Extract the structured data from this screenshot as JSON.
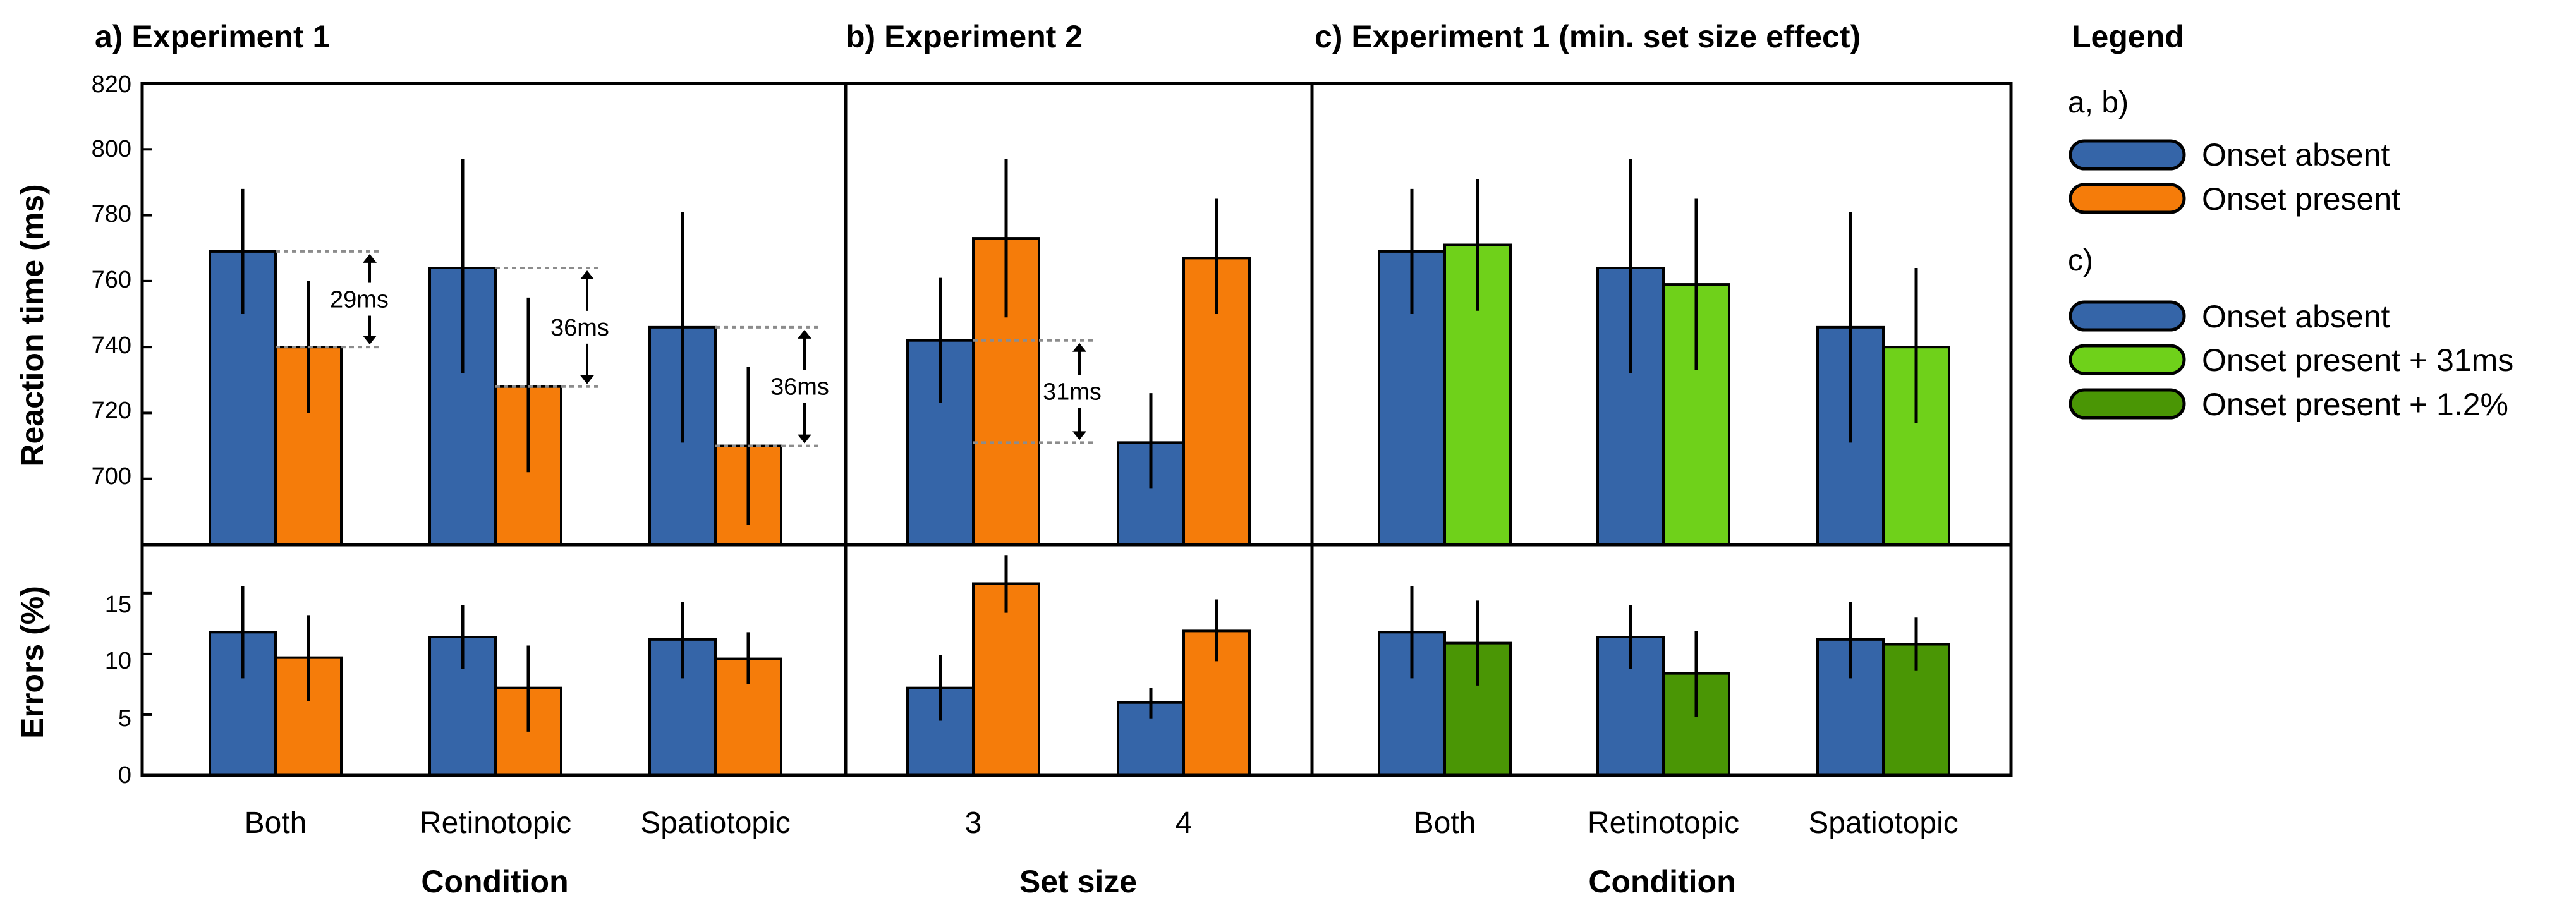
{
  "colors": {
    "onset_absent": "#3565a8",
    "onset_present": "#f57c0a",
    "onset_present_31ms": "#6fd11a",
    "onset_present_12pct": "#4a9605",
    "axis": "#000000",
    "guide": "#8c8c8c"
  },
  "titles": {
    "a": "a) Experiment 1",
    "b": "b) Experiment 2",
    "c": "c) Experiment 1 (min. set size effect)"
  },
  "axes": {
    "rt_label": "Reaction time (ms)",
    "err_label": "Errors (%)",
    "rt_ticks": [
      "820",
      "800",
      "780",
      "760",
      "740",
      "720",
      "700"
    ],
    "err_ticks": [
      "15",
      "10",
      "5",
      "0"
    ],
    "xlabel_a": "Condition",
    "xlabel_b": "Set size",
    "xlabel_c": "Condition"
  },
  "legend": {
    "title": "Legend",
    "group_ab": "a, b)",
    "group_c": "c)",
    "items_ab": [
      "Onset absent",
      "Onset present"
    ],
    "items_c": [
      "Onset absent",
      "Onset present + 31ms",
      "Onset present + 1.2%"
    ]
  },
  "annotations": [
    "29ms",
    "36ms",
    "36ms",
    "31ms"
  ],
  "chart_data": [
    {
      "type": "bar",
      "panel": "a) Experiment 1 — reaction time",
      "title": "a) Experiment 1",
      "categories": [
        "Both",
        "Retinotopic",
        "Spatiotopic"
      ],
      "ylabel": "Reaction time (ms)",
      "ylim": [
        680,
        820
      ],
      "series": [
        {
          "name": "Onset absent",
          "values": [
            769,
            764,
            746
          ],
          "err_low": [
            750,
            732,
            711
          ],
          "err_high": [
            788,
            797,
            781
          ]
        },
        {
          "name": "Onset present",
          "values": [
            740,
            728,
            710
          ],
          "err_low": [
            720,
            702,
            686
          ],
          "err_high": [
            760,
            755,
            734
          ]
        }
      ],
      "annotations": [
        {
          "text": "29ms",
          "category": "Both",
          "from": 769,
          "to": 740
        },
        {
          "text": "36ms",
          "category": "Retinotopic",
          "from": 764,
          "to": 728
        },
        {
          "text": "36ms",
          "category": "Spatiotopic",
          "from": 746,
          "to": 710
        }
      ]
    },
    {
      "type": "bar",
      "panel": "a) Experiment 1 — errors",
      "categories": [
        "Both",
        "Retinotopic",
        "Spatiotopic"
      ],
      "ylabel": "Errors (%)",
      "xlabel": "Condition",
      "ylim": [
        0,
        19
      ],
      "series": [
        {
          "name": "Onset absent",
          "values": [
            11.8,
            11.4,
            11.2
          ],
          "err_low": [
            8.0,
            8.8,
            8.0
          ],
          "err_high": [
            15.6,
            14.0,
            14.3
          ]
        },
        {
          "name": "Onset present",
          "values": [
            9.7,
            7.2,
            9.6
          ],
          "err_low": [
            6.1,
            3.6,
            7.5
          ],
          "err_high": [
            13.2,
            10.7,
            11.8
          ]
        }
      ]
    },
    {
      "type": "bar",
      "panel": "b) Experiment 2 — reaction time",
      "title": "b) Experiment 2",
      "categories": [
        "3",
        "4"
      ],
      "ylim": [
        680,
        820
      ],
      "series": [
        {
          "name": "Onset absent",
          "values": [
            742,
            711
          ],
          "err_low": [
            723,
            697
          ],
          "err_high": [
            761,
            726
          ]
        },
        {
          "name": "Onset present",
          "values": [
            773,
            767
          ],
          "err_low": [
            749,
            750
          ],
          "err_high": [
            797,
            785
          ]
        }
      ],
      "annotations": [
        {
          "text": "31ms",
          "from": 742,
          "to": 711
        }
      ]
    },
    {
      "type": "bar",
      "panel": "b) Experiment 2 — errors",
      "categories": [
        "3",
        "4"
      ],
      "xlabel": "Set size",
      "ylim": [
        0,
        19
      ],
      "series": [
        {
          "name": "Onset absent",
          "values": [
            7.2,
            6.0
          ],
          "err_low": [
            4.5,
            4.7
          ],
          "err_high": [
            9.9,
            7.2
          ]
        },
        {
          "name": "Onset present",
          "values": [
            15.8,
            11.9
          ],
          "err_low": [
            13.4,
            9.4
          ],
          "err_high": [
            18.1,
            14.5
          ]
        }
      ]
    },
    {
      "type": "bar",
      "panel": "c) Experiment 1 (min. set size effect) — reaction time",
      "title": "c) Experiment 1 (min. set size effect)",
      "categories": [
        "Both",
        "Retinotopic",
        "Spatiotopic"
      ],
      "ylim": [
        680,
        820
      ],
      "series": [
        {
          "name": "Onset absent",
          "values": [
            769,
            764,
            746
          ],
          "err_low": [
            750,
            732,
            711
          ],
          "err_high": [
            788,
            797,
            781
          ]
        },
        {
          "name": "Onset present + 31ms",
          "values": [
            771,
            759,
            740
          ],
          "err_low": [
            751,
            733,
            717
          ],
          "err_high": [
            791,
            785,
            764
          ]
        }
      ]
    },
    {
      "type": "bar",
      "panel": "c) Experiment 1 (min. set size effect) — errors",
      "categories": [
        "Both",
        "Retinotopic",
        "Spatiotopic"
      ],
      "xlabel": "Condition",
      "ylim": [
        0,
        19
      ],
      "series": [
        {
          "name": "Onset absent",
          "values": [
            11.8,
            11.4,
            11.2
          ],
          "err_low": [
            8.0,
            8.8,
            8.0
          ],
          "err_high": [
            15.6,
            14.0,
            14.3
          ]
        },
        {
          "name": "Onset present + 1.2%",
          "values": [
            10.9,
            8.4,
            10.8
          ],
          "err_low": [
            7.4,
            4.8,
            8.6
          ],
          "err_high": [
            14.4,
            11.9,
            13.0
          ]
        }
      ]
    }
  ]
}
